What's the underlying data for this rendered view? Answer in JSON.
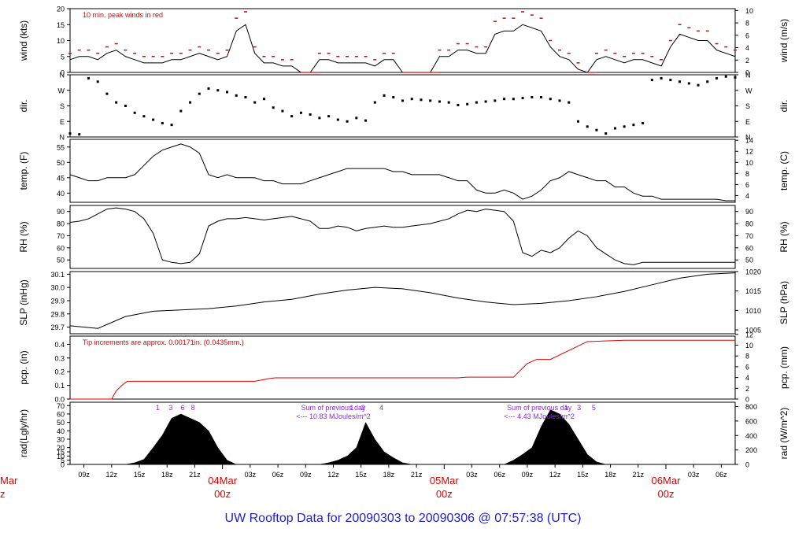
{
  "footer": {
    "title": "UW Rooftop Data for 20090303  to  20090306 @ 07:57:38  (UTC)"
  },
  "colors": {
    "red": "#e00000",
    "purple": "#8a2be2",
    "blue": "#2020d0",
    "ink": "#000000"
  },
  "chart_data": {
    "type": "line",
    "time_ticks": [
      "09z",
      "12z",
      "15z",
      "18z",
      "21z",
      "03z",
      "06z",
      "09z",
      "12z",
      "15z",
      "18z",
      "21z",
      "03z",
      "06z",
      "09z",
      "12z",
      "15z",
      "18z",
      "21z",
      "03z",
      "06z"
    ],
    "day_labels": [
      {
        "date": "04Mar",
        "time": "00z"
      },
      {
        "date": "05Mar",
        "time": "00z"
      },
      {
        "date": "06Mar",
        "time": "00z"
      }
    ],
    "left_cut_label": {
      "date": "Mar",
      "time": "z"
    },
    "panels": [
      {
        "id": "wind",
        "ylabel": "wind (kts)",
        "ylabel_right": "wind (m/s)",
        "ylim": [
          0,
          20
        ],
        "yticks": [
          "0",
          "5",
          "10",
          "15",
          "20"
        ],
        "right_ylim": [
          0,
          10.3
        ],
        "right_yticks": [
          "0",
          "2",
          "4",
          "6",
          "8",
          "10"
        ],
        "annotation": "10 min. peak winds in red",
        "x": [
          0,
          1,
          2,
          3,
          4,
          5,
          6,
          7,
          8,
          9,
          10,
          11,
          12,
          13,
          14,
          15,
          16,
          17,
          18,
          19,
          20,
          21,
          22,
          23,
          24,
          25,
          26,
          27,
          28,
          29,
          30,
          31,
          32,
          33,
          34,
          35,
          36,
          37,
          38,
          39,
          40,
          41,
          42,
          43,
          44,
          45,
          46,
          47,
          48,
          49,
          50,
          51,
          52,
          53,
          54,
          55,
          56,
          57,
          58,
          59,
          60,
          61,
          62,
          63,
          64,
          65,
          66,
          67,
          68,
          69,
          70,
          71,
          72
        ],
        "values": [
          4,
          5,
          5,
          4,
          6,
          7,
          5,
          4,
          3,
          3,
          3,
          4,
          4,
          5,
          6,
          5,
          4,
          5,
          13,
          15,
          6,
          3,
          3,
          2,
          2,
          0,
          0,
          4,
          4,
          3,
          3,
          3,
          3,
          2,
          4,
          4,
          0,
          0,
          0,
          0,
          5,
          5,
          7,
          7,
          6,
          6,
          12,
          13,
          13,
          15,
          14,
          13,
          8,
          5,
          4,
          1,
          0,
          4,
          5,
          4,
          3,
          4,
          4,
          3,
          2,
          8,
          12,
          11,
          10,
          10,
          7,
          6,
          5
        ],
        "peaks": [
          6,
          7,
          7,
          6,
          8,
          9,
          7,
          6,
          5,
          5,
          5,
          6,
          6,
          7,
          8,
          7,
          6,
          7,
          17,
          19,
          8,
          5,
          5,
          4,
          4,
          0,
          0,
          6,
          6,
          5,
          5,
          5,
          5,
          4,
          6,
          6,
          0,
          0,
          0,
          0,
          7,
          7,
          9,
          9,
          8,
          8,
          16,
          17,
          17,
          19,
          18,
          17,
          10,
          7,
          6,
          3,
          0,
          6,
          7,
          6,
          5,
          6,
          6,
          5,
          4,
          10,
          15,
          14,
          13,
          13,
          9,
          8,
          7
        ]
      },
      {
        "id": "dir",
        "ylabel": "dir.",
        "ylabel_right": "dir.",
        "ylim": [
          0,
          360
        ],
        "yticks": [
          "N",
          "E",
          "S",
          "W",
          "N"
        ],
        "right_ylim": [
          0,
          360
        ],
        "right_yticks": [
          "N",
          "E",
          "S",
          "W",
          "N"
        ],
        "x": [
          0,
          1,
          2,
          3,
          4,
          5,
          6,
          7,
          8,
          9,
          10,
          11,
          12,
          13,
          14,
          15,
          16,
          17,
          18,
          19,
          20,
          21,
          22,
          23,
          24,
          25,
          26,
          27,
          28,
          29,
          30,
          31,
          32,
          33,
          34,
          35,
          36,
          37,
          38,
          39,
          40,
          41,
          42,
          43,
          44,
          45,
          46,
          47,
          48,
          49,
          50,
          51,
          52,
          53,
          54,
          55,
          56,
          57,
          58,
          59,
          60,
          61,
          62,
          63,
          64,
          65,
          66,
          67,
          68,
          69,
          70,
          71,
          72
        ],
        "values": [
          20,
          15,
          340,
          320,
          250,
          200,
          180,
          140,
          120,
          100,
          80,
          70,
          150,
          200,
          250,
          280,
          270,
          260,
          240,
          230,
          200,
          220,
          170,
          150,
          120,
          140,
          130,
          110,
          120,
          100,
          90,
          110,
          95,
          200,
          240,
          230,
          210,
          220,
          215,
          210,
          205,
          200,
          185,
          190,
          200,
          205,
          210,
          220,
          220,
          225,
          230,
          230,
          220,
          210,
          200,
          90,
          60,
          40,
          20,
          50,
          60,
          70,
          80,
          330,
          340,
          330,
          320,
          310,
          300,
          320,
          340,
          350,
          345
        ]
      },
      {
        "id": "temp",
        "ylabel": "temp. (F)",
        "ylabel_right": "temp. (C)",
        "ylim": [
          37,
          57.5
        ],
        "yticks": [
          "40",
          "45",
          "50",
          "55"
        ],
        "right_ylim": [
          2.78,
          14.17
        ],
        "right_yticks": [
          "4",
          "6",
          "8",
          "10",
          "12",
          "14"
        ],
        "x": [
          0,
          1,
          2,
          3,
          4,
          5,
          6,
          7,
          8,
          9,
          10,
          11,
          12,
          13,
          14,
          15,
          16,
          17,
          18,
          19,
          20,
          21,
          22,
          23,
          24,
          25,
          26,
          27,
          28,
          29,
          30,
          31,
          32,
          33,
          34,
          35,
          36,
          37,
          38,
          39,
          40,
          41,
          42,
          43,
          44,
          45,
          46,
          47,
          48,
          49,
          50,
          51,
          52,
          53,
          54,
          55,
          56,
          57,
          58,
          59,
          60,
          61,
          62,
          63,
          64,
          65,
          66,
          67,
          68,
          69,
          70,
          71,
          72
        ],
        "values": [
          46,
          45,
          44,
          44,
          45,
          45,
          45,
          46,
          49,
          52,
          54,
          55,
          56,
          55,
          53,
          46,
          45,
          46,
          45,
          45,
          45,
          44,
          44,
          43,
          43,
          43,
          44,
          45,
          46,
          47,
          48,
          48,
          48,
          48,
          48,
          47,
          47,
          46,
          46,
          46,
          46,
          45,
          44,
          44,
          41,
          40,
          40,
          41,
          40,
          38,
          39,
          41,
          44,
          45,
          47,
          46,
          45,
          44,
          44,
          42,
          42,
          40,
          39,
          39,
          38,
          38,
          38,
          38,
          38,
          38,
          38,
          37.5,
          37.5
        ]
      },
      {
        "id": "rh",
        "ylabel": "RH (%)",
        "ylabel_right": "RH (%)",
        "ylim": [
          43,
          95
        ],
        "yticks": [
          "50",
          "60",
          "70",
          "80",
          "90"
        ],
        "right_ylim": [
          43,
          95
        ],
        "right_yticks": [
          "50",
          "60",
          "70",
          "80",
          "90"
        ],
        "x": [
          0,
          1,
          2,
          3,
          4,
          5,
          6,
          7,
          8,
          9,
          10,
          11,
          12,
          13,
          14,
          15,
          16,
          17,
          18,
          19,
          20,
          21,
          22,
          23,
          24,
          25,
          26,
          27,
          28,
          29,
          30,
          31,
          32,
          33,
          34,
          35,
          36,
          37,
          38,
          39,
          40,
          41,
          42,
          43,
          44,
          45,
          46,
          47,
          48,
          49,
          50,
          51,
          52,
          53,
          54,
          55,
          56,
          57,
          58,
          59,
          60,
          61,
          62,
          63,
          64,
          65,
          66,
          67,
          68,
          69,
          70,
          71,
          72
        ],
        "values": [
          81,
          82,
          84,
          88,
          92,
          93,
          92,
          90,
          84,
          72,
          50,
          48,
          47,
          48,
          55,
          78,
          82,
          84,
          84,
          85,
          84,
          83,
          84,
          85,
          86,
          84,
          82,
          76,
          76,
          78,
          77,
          74,
          76,
          77,
          78,
          77,
          77,
          78,
          79,
          80,
          82,
          84,
          88,
          91,
          90,
          92,
          91,
          90,
          82,
          56,
          53,
          58,
          56,
          60,
          68,
          74,
          70,
          60,
          55,
          50,
          47,
          46,
          48,
          48,
          48,
          48,
          48,
          48,
          48,
          48,
          48,
          48,
          48
        ]
      },
      {
        "id": "slp",
        "ylabel": "SLP (inHg)",
        "ylabel_right": "SLP (hPa)",
        "ylim": [
          29.65,
          30.12
        ],
        "yticks": [
          "29.7",
          "29.8",
          "29.9",
          "30.0",
          "30.1"
        ],
        "right_ylim": [
          1004.0,
          1020.0
        ],
        "right_yticks": [
          "1005",
          "1010",
          "1015",
          "1020"
        ],
        "x": [
          0,
          3,
          6,
          9,
          12,
          15,
          18,
          21,
          24,
          27,
          30,
          33,
          36,
          39,
          42,
          45,
          48,
          51,
          54,
          57,
          60,
          63,
          66,
          69,
          72
        ],
        "values": [
          29.71,
          29.69,
          29.78,
          29.82,
          29.83,
          29.84,
          29.86,
          29.89,
          29.91,
          29.95,
          29.98,
          30.0,
          29.99,
          29.96,
          29.92,
          29.89,
          29.87,
          29.88,
          29.9,
          29.93,
          29.97,
          30.02,
          30.07,
          30.1,
          30.11
        ]
      },
      {
        "id": "pcp",
        "ylabel": "pcp. (in)",
        "ylabel_right": "pcp. (mm)",
        "ylim": [
          0,
          0.46
        ],
        "yticks": [
          "0.0",
          "0.1",
          "0.2",
          "0.3",
          "0.4"
        ],
        "right_ylim": [
          0,
          11.68
        ],
        "right_yticks": [
          "0",
          "2",
          "4",
          "6",
          "8",
          "10",
          "12"
        ],
        "annotation": "Tip increments are approx. 0.00171in. (0.0435mm.)",
        "x": [
          0,
          4.5,
          5.0,
          5.6,
          6.2,
          20.0,
          20.8,
          21.6,
          22.2,
          42.0,
          43.0,
          48.0,
          49.5,
          50.5,
          52.0,
          56.0,
          60.0,
          72
        ],
        "values": [
          0,
          0,
          0.06,
          0.1,
          0.13,
          0.13,
          0.14,
          0.15,
          0.155,
          0.155,
          0.16,
          0.16,
          0.26,
          0.29,
          0.29,
          0.42,
          0.43,
          0.43
        ]
      },
      {
        "id": "rad",
        "ylabel": "rad(Lgly/hr)",
        "ylabel_right": "rad (W/m^2)",
        "ylim": [
          0,
          74
        ],
        "yticks": [
          "0",
          "5",
          "10",
          "15",
          "20",
          "30",
          "40",
          "50",
          "60",
          "70"
        ],
        "right_ylim": [
          0,
          860
        ],
        "right_yticks": [
          "0",
          "200",
          "400",
          "600",
          "800"
        ],
        "sum_notes": [
          {
            "line1": "Sum of previous day",
            "line2": "<--- 10.83 MJoules/m^2"
          },
          {
            "line1": "Sum of previous day",
            "line2": "<--- 4.43 MJoules/m^2"
          }
        ],
        "peak_markers": [
          {
            "labels": [
              "1",
              "3",
              "6",
              "8"
            ]
          },
          {
            "labels": [
              "1",
              "2",
              "4"
            ]
          },
          {
            "labels": [
              "1",
              "3",
              "5"
            ]
          }
        ],
        "x": [
          0,
          4,
          5,
          6,
          7,
          8,
          9,
          10,
          11,
          12,
          13,
          14,
          15,
          16,
          17,
          18,
          19,
          20,
          21,
          22,
          23,
          24,
          25,
          26,
          27,
          28,
          29,
          30,
          31,
          32,
          33,
          34,
          35,
          36,
          37,
          38,
          39,
          40,
          41,
          42,
          43,
          44,
          45,
          46,
          47,
          48,
          49,
          50,
          51,
          52,
          53,
          54,
          55,
          56,
          57,
          58,
          59,
          60,
          61,
          62,
          63,
          64,
          65,
          66,
          67,
          68,
          69,
          70,
          71,
          72
        ],
        "values": [
          0,
          0,
          0,
          0,
          2,
          6,
          20,
          35,
          55,
          60,
          55,
          50,
          40,
          20,
          5,
          0,
          0,
          0,
          0,
          0,
          0,
          0,
          0,
          0,
          0,
          2,
          5,
          10,
          20,
          50,
          30,
          15,
          8,
          2,
          0,
          0,
          0,
          0,
          0,
          0,
          0,
          0,
          0,
          0,
          0,
          5,
          12,
          20,
          45,
          65,
          60,
          48,
          30,
          12,
          3,
          0,
          0,
          0,
          0,
          0,
          0,
          0,
          0,
          0,
          0,
          0,
          0,
          0,
          0,
          0
        ]
      }
    ]
  }
}
